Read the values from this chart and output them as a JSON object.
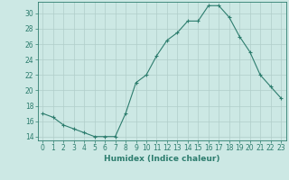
{
  "x": [
    0,
    1,
    2,
    3,
    4,
    5,
    6,
    7,
    8,
    9,
    10,
    11,
    12,
    13,
    14,
    15,
    16,
    17,
    18,
    19,
    20,
    21,
    22,
    23
  ],
  "y": [
    17,
    16.5,
    15.5,
    15,
    14.5,
    14,
    14,
    14,
    17,
    21,
    22,
    24.5,
    26.5,
    27.5,
    29,
    29,
    31,
    31,
    29.5,
    27,
    25,
    22,
    20.5,
    19
  ],
  "line_color": "#2d7d6e",
  "marker": "+",
  "marker_size": 3,
  "marker_lw": 0.8,
  "bg_color": "#cce8e4",
  "grid_color": "#b0cdc9",
  "xlabel": "Humidex (Indice chaleur)",
  "xlim": [
    -0.5,
    23.5
  ],
  "ylim": [
    13.5,
    31.5
  ],
  "yticks": [
    14,
    16,
    18,
    20,
    22,
    24,
    26,
    28,
    30
  ],
  "xticks": [
    0,
    1,
    2,
    3,
    4,
    5,
    6,
    7,
    8,
    9,
    10,
    11,
    12,
    13,
    14,
    15,
    16,
    17,
    18,
    19,
    20,
    21,
    22,
    23
  ],
  "tick_label_fontsize": 5.5,
  "xlabel_fontsize": 6.5,
  "axis_color": "#2d7d6e",
  "tick_color": "#2d7d6e",
  "line_width": 0.8
}
